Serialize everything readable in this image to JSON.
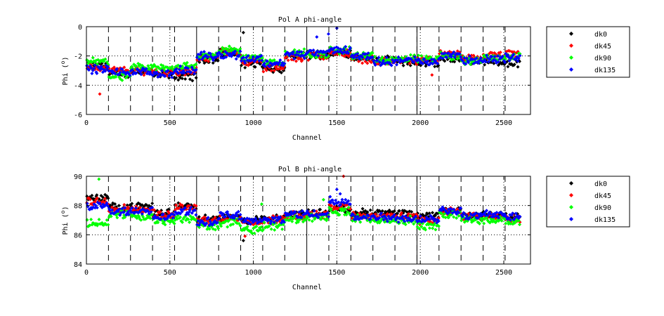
{
  "colors": {
    "dk0": "#000000",
    "dk45": "#ff0000",
    "dk90": "#00ff00",
    "dk135": "#0000ff",
    "dashed_line": "#000000",
    "dotted_grid": "#000000"
  },
  "chart_data": [
    {
      "type": "scatter",
      "title": "Pol A phi-angle",
      "xlabel": "Channel",
      "ylabel": "Phi (°)",
      "ylabel_parts": [
        "Phi (",
        "o",
        ")"
      ],
      "xlim": [
        0,
        2660
      ],
      "ylim": [
        -6,
        0
      ],
      "xticks": [
        0,
        500,
        1000,
        1500,
        2000,
        2500
      ],
      "yticks": [
        -6,
        -4,
        -2,
        0
      ],
      "xtick_labels": [
        "0",
        "500",
        "1000",
        "1500",
        "2000",
        "2500"
      ],
      "ytick_labels": [
        "-6",
        "-4",
        "-2",
        "0"
      ],
      "grid": "dotted",
      "dashed_vlines": [
        132,
        264,
        396,
        528,
        792,
        924,
        1056,
        1188,
        1452,
        1584,
        1716,
        1848,
        1980,
        2112,
        2244,
        2376,
        2508
      ],
      "solid_vlines": [
        660,
        1320,
        1980
      ],
      "legend": [
        "dk0",
        "dk45",
        "dk90",
        "dk135"
      ],
      "legend_position": "right",
      "series": [
        {
          "name": "dk0",
          "color": "#000000",
          "segments": [
            [
              0,
              132,
              -2.7
            ],
            [
              132,
              264,
              -3.2
            ],
            [
              264,
              396,
              -3.0
            ],
            [
              396,
              528,
              -3.3
            ],
            [
              528,
              660,
              -3.4
            ],
            [
              660,
              792,
              -2.2
            ],
            [
              792,
              924,
              -1.8
            ],
            [
              924,
              1056,
              -2.5
            ],
            [
              1056,
              1188,
              -2.9
            ],
            [
              1188,
              1320,
              -2.0
            ],
            [
              1320,
              1452,
              -1.9
            ],
            [
              1452,
              1584,
              -1.8
            ],
            [
              1584,
              1716,
              -2.1
            ],
            [
              1716,
              1848,
              -2.3
            ],
            [
              1848,
              1980,
              -2.4
            ],
            [
              1980,
              2112,
              -2.5
            ],
            [
              2112,
              2244,
              -2.2
            ],
            [
              2244,
              2376,
              -2.3
            ],
            [
              2376,
              2508,
              -2.4
            ],
            [
              2508,
              2596,
              -2.5
            ]
          ]
        },
        {
          "name": "dk45",
          "color": "#ff0000",
          "segments": [
            [
              0,
              132,
              -2.8
            ],
            [
              132,
              264,
              -3.0
            ],
            [
              264,
              396,
              -3.0
            ],
            [
              396,
              528,
              -3.1
            ],
            [
              528,
              660,
              -3.1
            ],
            [
              660,
              792,
              -2.1
            ],
            [
              792,
              924,
              -1.7
            ],
            [
              924,
              1056,
              -2.4
            ],
            [
              1056,
              1188,
              -2.8
            ],
            [
              1188,
              1320,
              -2.1
            ],
            [
              1320,
              1452,
              -2.0
            ],
            [
              1452,
              1584,
              -1.8
            ],
            [
              1584,
              1716,
              -2.2
            ],
            [
              1716,
              1848,
              -2.4
            ],
            [
              1848,
              1980,
              -2.3
            ],
            [
              1980,
              2112,
              -2.3
            ],
            [
              2112,
              2244,
              -1.9
            ],
            [
              2244,
              2376,
              -2.2
            ],
            [
              2376,
              2508,
              -2.0
            ],
            [
              2508,
              2596,
              -1.9
            ]
          ]
        },
        {
          "name": "dk90",
          "color": "#00ff00",
          "segments": [
            [
              0,
              132,
              -2.4
            ],
            [
              132,
              264,
              -3.4
            ],
            [
              264,
              396,
              -2.8
            ],
            [
              396,
              528,
              -2.8
            ],
            [
              528,
              660,
              -2.7
            ],
            [
              660,
              792,
              -2.0
            ],
            [
              792,
              924,
              -1.6
            ],
            [
              924,
              1056,
              -2.1
            ],
            [
              1056,
              1188,
              -2.4
            ],
            [
              1188,
              1320,
              -1.8
            ],
            [
              1320,
              1452,
              -1.9
            ],
            [
              1452,
              1584,
              -1.6
            ],
            [
              1584,
              1716,
              -2.0
            ],
            [
              1716,
              1848,
              -2.3
            ],
            [
              1848,
              1980,
              -2.2
            ],
            [
              1980,
              2112,
              -2.2
            ],
            [
              2112,
              2244,
              -2.0
            ],
            [
              2244,
              2376,
              -2.3
            ],
            [
              2376,
              2508,
              -2.1
            ],
            [
              2508,
              2596,
              -2.0
            ]
          ]
        },
        {
          "name": "dk135",
          "color": "#0000ff",
          "segments": [
            [
              0,
              132,
              -2.9
            ],
            [
              132,
              264,
              -3.1
            ],
            [
              264,
              396,
              -3.1
            ],
            [
              396,
              528,
              -3.2
            ],
            [
              528,
              660,
              -3.0
            ],
            [
              660,
              792,
              -2.0
            ],
            [
              792,
              924,
              -1.9
            ],
            [
              924,
              1056,
              -2.2
            ],
            [
              1056,
              1188,
              -2.5
            ],
            [
              1188,
              1320,
              -1.9
            ],
            [
              1320,
              1452,
              -1.8
            ],
            [
              1452,
              1584,
              -1.6
            ],
            [
              1584,
              1716,
              -2.0
            ],
            [
              1716,
              1848,
              -2.4
            ],
            [
              1848,
              1980,
              -2.3
            ],
            [
              1980,
              2112,
              -2.4
            ],
            [
              2112,
              2244,
              -1.9
            ],
            [
              2244,
              2376,
              -2.3
            ],
            [
              2376,
              2508,
              -2.2
            ],
            [
              2508,
              2596,
              -2.1
            ]
          ]
        }
      ],
      "outliers": [
        {
          "series": "dk45",
          "x": 80,
          "y": -4.6
        },
        {
          "series": "dk0",
          "x": 940,
          "y": -0.4
        },
        {
          "series": "dk135",
          "x": 1450,
          "y": -0.5
        },
        {
          "series": "dk135",
          "x": 1500,
          "y": -0.1
        },
        {
          "series": "dk135",
          "x": 1380,
          "y": -0.7
        },
        {
          "series": "dk45",
          "x": 2070,
          "y": -3.3
        },
        {
          "series": "dk0",
          "x": 950,
          "y": -2.8
        }
      ]
    },
    {
      "type": "scatter",
      "title": "Pol B phi-angle",
      "xlabel": "Channel",
      "ylabel": "Phi (°)",
      "ylabel_parts": [
        "Phi (",
        "o",
        ")"
      ],
      "xlim": [
        0,
        2660
      ],
      "ylim": [
        84,
        90
      ],
      "xticks": [
        0,
        500,
        1000,
        1500,
        2000,
        2500
      ],
      "yticks": [
        84,
        86,
        88,
        90
      ],
      "xtick_labels": [
        "0",
        "500",
        "1000",
        "1500",
        "2000",
        "2500"
      ],
      "ytick_labels": [
        "84",
        "86",
        "88",
        "90"
      ],
      "grid": "dotted",
      "dashed_vlines": [
        132,
        264,
        396,
        528,
        792,
        924,
        1056,
        1188,
        1452,
        1584,
        1716,
        1848,
        1980,
        2112,
        2244,
        2376,
        2508
      ],
      "solid_vlines": [
        660,
        1320,
        1980
      ],
      "legend": [
        "dk0",
        "dk45",
        "dk90",
        "dk135"
      ],
      "legend_position": "right",
      "series": [
        {
          "name": "dk0",
          "color": "#000000",
          "segments": [
            [
              0,
              132,
              88.5
            ],
            [
              132,
              264,
              87.9
            ],
            [
              264,
              396,
              87.9
            ],
            [
              396,
              528,
              87.5
            ],
            [
              528,
              660,
              88.0
            ],
            [
              660,
              792,
              87.1
            ],
            [
              792,
              924,
              87.2
            ],
            [
              924,
              1056,
              87.0
            ],
            [
              1056,
              1188,
              87.1
            ],
            [
              1188,
              1320,
              87.4
            ],
            [
              1320,
              1452,
              87.5
            ],
            [
              1452,
              1584,
              87.8
            ],
            [
              1584,
              1716,
              87.5
            ],
            [
              1716,
              1848,
              87.5
            ],
            [
              1848,
              1980,
              87.4
            ],
            [
              1980,
              2112,
              87.3
            ],
            [
              2112,
              2244,
              87.7
            ],
            [
              2244,
              2376,
              87.3
            ],
            [
              2376,
              2508,
              87.3
            ],
            [
              2508,
              2596,
              87.2
            ]
          ]
        },
        {
          "name": "dk45",
          "color": "#ff0000",
          "segments": [
            [
              0,
              132,
              88.3
            ],
            [
              132,
              264,
              87.8
            ],
            [
              264,
              396,
              87.7
            ],
            [
              396,
              528,
              87.4
            ],
            [
              528,
              660,
              87.9
            ],
            [
              660,
              792,
              87.0
            ],
            [
              792,
              924,
              87.1
            ],
            [
              924,
              1056,
              86.9
            ],
            [
              1056,
              1188,
              87.0
            ],
            [
              1188,
              1320,
              87.3
            ],
            [
              1320,
              1452,
              87.4
            ],
            [
              1452,
              1584,
              87.9
            ],
            [
              1584,
              1716,
              87.3
            ],
            [
              1716,
              1848,
              87.3
            ],
            [
              1848,
              1980,
              87.2
            ],
            [
              1980,
              2112,
              87.0
            ],
            [
              2112,
              2244,
              87.6
            ],
            [
              2244,
              2376,
              87.2
            ],
            [
              2376,
              2508,
              87.2
            ],
            [
              2508,
              2596,
              87.1
            ]
          ]
        },
        {
          "name": "dk90",
          "color": "#00ff00",
          "segments": [
            [
              0,
              132,
              86.8
            ],
            [
              132,
              264,
              87.4
            ],
            [
              264,
              396,
              87.2
            ],
            [
              396,
              528,
              86.9
            ],
            [
              528,
              660,
              87.1
            ],
            [
              660,
              792,
              86.6
            ],
            [
              792,
              924,
              86.8
            ],
            [
              924,
              1056,
              86.4
            ],
            [
              1056,
              1188,
              86.6
            ],
            [
              1188,
              1320,
              87.1
            ],
            [
              1320,
              1452,
              87.2
            ],
            [
              1452,
              1584,
              87.6
            ],
            [
              1584,
              1716,
              87.1
            ],
            [
              1716,
              1848,
              87.0
            ],
            [
              1848,
              1980,
              87.0
            ],
            [
              1980,
              2112,
              86.6
            ],
            [
              2112,
              2244,
              87.4
            ],
            [
              2244,
              2376,
              87.0
            ],
            [
              2376,
              2508,
              87.0
            ],
            [
              2508,
              2596,
              86.9
            ]
          ]
        },
        {
          "name": "dk135",
          "color": "#0000ff",
          "segments": [
            [
              0,
              132,
              88.0
            ],
            [
              132,
              264,
              87.6
            ],
            [
              264,
              396,
              87.6
            ],
            [
              396,
              528,
              87.2
            ],
            [
              528,
              660,
              87.6
            ],
            [
              660,
              792,
              86.9
            ],
            [
              792,
              924,
              87.3
            ],
            [
              924,
              1056,
              87.0
            ],
            [
              1056,
              1188,
              87.0
            ],
            [
              1188,
              1320,
              87.4
            ],
            [
              1320,
              1452,
              87.4
            ],
            [
              1452,
              1584,
              88.2
            ],
            [
              1584,
              1716,
              87.2
            ],
            [
              1716,
              1848,
              87.2
            ],
            [
              1848,
              1980,
              87.1
            ],
            [
              1980,
              2112,
              87.1
            ],
            [
              2112,
              2244,
              87.7
            ],
            [
              2244,
              2376,
              87.3
            ],
            [
              2376,
              2508,
              87.4
            ],
            [
              2508,
              2596,
              87.2
            ]
          ]
        }
      ],
      "outliers": [
        {
          "series": "dk90",
          "x": 75,
          "y": 89.8
        },
        {
          "series": "dk45",
          "x": 1540,
          "y": 90.0
        },
        {
          "series": "dk0",
          "x": 940,
          "y": 85.6
        },
        {
          "series": "dk45",
          "x": 950,
          "y": 85.9
        },
        {
          "series": "dk135",
          "x": 1500,
          "y": 89.1
        },
        {
          "series": "dk135",
          "x": 1520,
          "y": 88.8
        },
        {
          "series": "dk90",
          "x": 1420,
          "y": 88.4
        },
        {
          "series": "dk135",
          "x": 1460,
          "y": 88.6
        },
        {
          "series": "dk90",
          "x": 1050,
          "y": 88.1
        }
      ]
    }
  ]
}
